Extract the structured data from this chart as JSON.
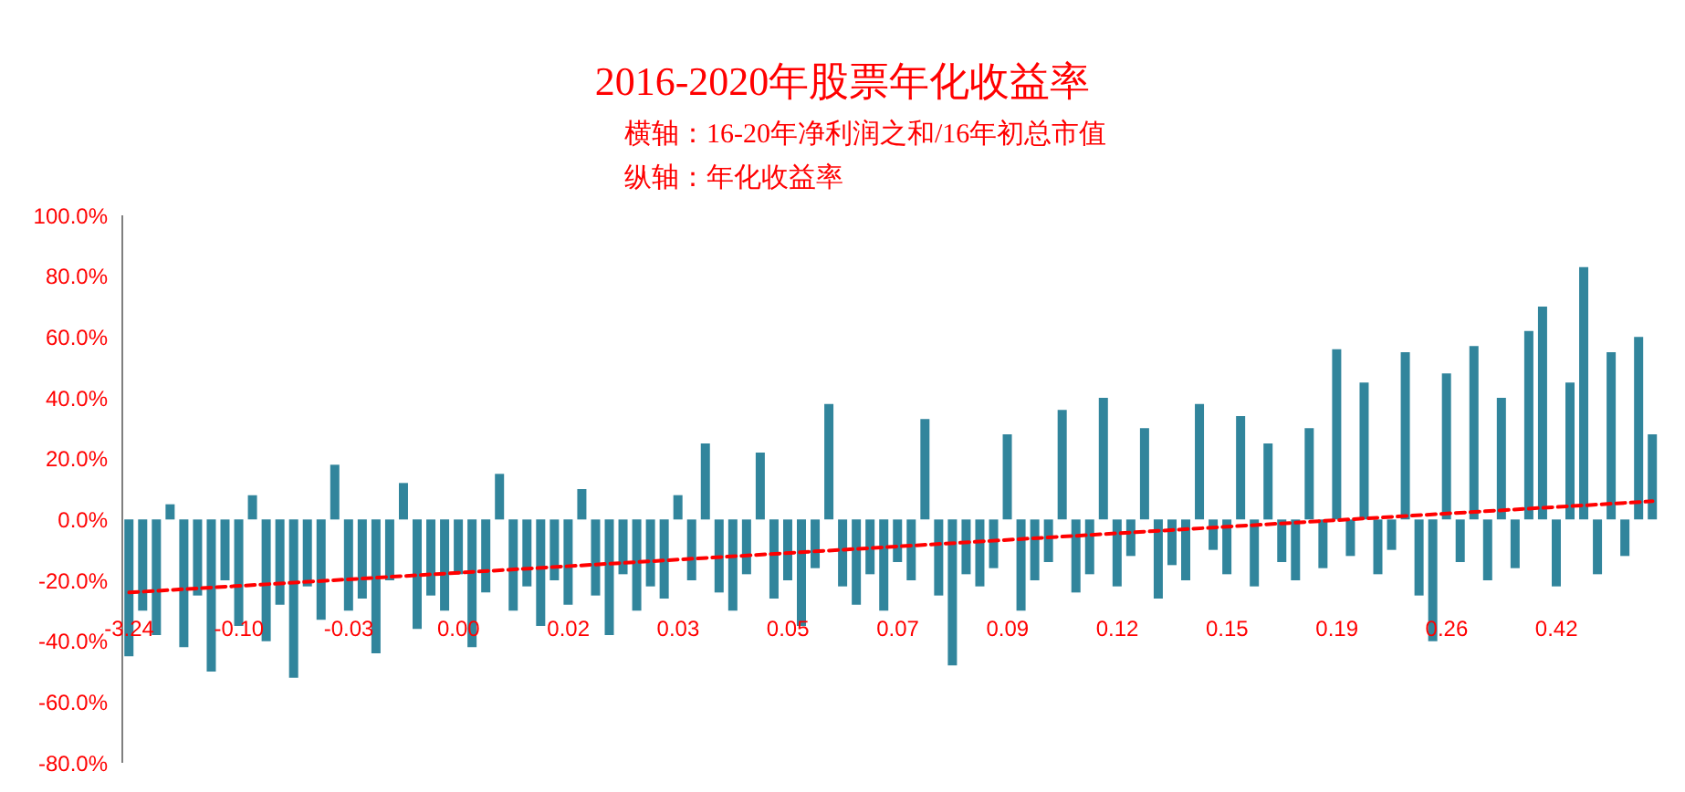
{
  "chart_data": {
    "type": "bar",
    "title": "2016-2020年股票年化收益率",
    "subtitle": "横轴：16-20年净利润之和/16年初总市值",
    "annotations": [
      "纵轴：年化收益率"
    ],
    "categories": [
      "-3.24",
      null,
      null,
      null,
      null,
      null,
      null,
      null,
      "-0.10",
      null,
      null,
      null,
      null,
      null,
      null,
      null,
      "-0.03",
      null,
      null,
      null,
      null,
      null,
      null,
      null,
      "0.00",
      null,
      null,
      null,
      null,
      null,
      null,
      null,
      "0.02",
      null,
      null,
      null,
      null,
      null,
      null,
      null,
      "0.03",
      null,
      null,
      null,
      null,
      null,
      null,
      null,
      "0.05",
      null,
      null,
      null,
      null,
      null,
      null,
      null,
      "0.07",
      null,
      null,
      null,
      null,
      null,
      null,
      null,
      "0.09",
      null,
      null,
      null,
      null,
      null,
      null,
      null,
      "0.12",
      null,
      null,
      null,
      null,
      null,
      null,
      null,
      "0.15",
      null,
      null,
      null,
      null,
      null,
      null,
      null,
      "0.19",
      null,
      null,
      null,
      null,
      null,
      null,
      null,
      "0.26",
      null,
      null,
      null,
      null,
      null,
      null,
      null,
      "0.42",
      null,
      null,
      null,
      null,
      null,
      null,
      null
    ],
    "series": [
      {
        "color": "#31859c",
        "values": [
          -45,
          -30,
          -38,
          5,
          -42,
          -25,
          -50,
          -20,
          -35,
          8,
          -40,
          -28,
          -52,
          -22,
          -33,
          18,
          -30,
          -26,
          -44,
          -20,
          12,
          -36,
          -25,
          -30,
          -18,
          -42,
          -24,
          15,
          -30,
          -22,
          -35,
          -20,
          -28,
          10,
          -25,
          -38,
          -18,
          -30,
          -22,
          -26,
          8,
          -20,
          25,
          -24,
          -30,
          -18,
          22,
          -26,
          -20,
          -35,
          -16,
          38,
          -22,
          -28,
          -18,
          -30,
          -14,
          -20,
          33,
          -25,
          -48,
          -18,
          -22,
          -16,
          28,
          -30,
          -20,
          -14,
          36,
          -24,
          -18,
          40,
          -22,
          -12,
          30,
          -26,
          -15,
          -20,
          38,
          -10,
          -18,
          34,
          -22,
          25,
          -14,
          -20,
          30,
          -16,
          56,
          -12,
          45,
          -18,
          -10,
          55,
          -25,
          -40,
          48,
          -14,
          57,
          -20,
          40,
          -16,
          62,
          70,
          -22,
          45,
          83,
          -18,
          55,
          -12,
          60,
          28
        ]
      },
      {
        "type": "line",
        "color": "#ff0000",
        "line_style": "dashed",
        "values": [
          -24,
          null,
          null,
          null,
          null,
          null,
          null,
          null,
          null,
          null,
          null,
          null,
          null,
          null,
          null,
          null,
          null,
          null,
          null,
          null,
          null,
          null,
          null,
          null,
          null,
          null,
          null,
          null,
          null,
          null,
          null,
          null,
          null,
          null,
          null,
          null,
          null,
          null,
          null,
          null,
          null,
          null,
          null,
          null,
          null,
          null,
          null,
          null,
          null,
          null,
          null,
          null,
          null,
          null,
          null,
          null,
          null,
          null,
          null,
          null,
          null,
          null,
          null,
          null,
          null,
          null,
          null,
          null,
          null,
          null,
          null,
          null,
          null,
          null,
          null,
          null,
          null,
          null,
          null,
          null,
          null,
          null,
          null,
          null,
          null,
          null,
          null,
          null,
          null,
          null,
          null,
          null,
          null,
          null,
          null,
          null,
          null,
          null,
          null,
          null,
          null,
          null,
          null,
          null,
          null,
          null,
          null,
          null,
          null,
          null,
          null,
          6
        ]
      }
    ],
    "ylim": [
      -80,
      100
    ],
    "yticks": [
      {
        "value": -80,
        "label": "-80.0%"
      },
      {
        "value": -60,
        "label": "-60.0%"
      },
      {
        "value": -40,
        "label": "-40.0%"
      },
      {
        "value": -20,
        "label": "-20.0%"
      },
      {
        "value": 0,
        "label": "0.0%"
      },
      {
        "value": 20,
        "label": "20.0%"
      },
      {
        "value": 40,
        "label": "40.0%"
      },
      {
        "value": 60,
        "label": "60.0%"
      },
      {
        "value": 80,
        "label": "80.0%"
      },
      {
        "value": 100,
        "label": "100.0%"
      }
    ],
    "grid": false,
    "marker": "none"
  }
}
